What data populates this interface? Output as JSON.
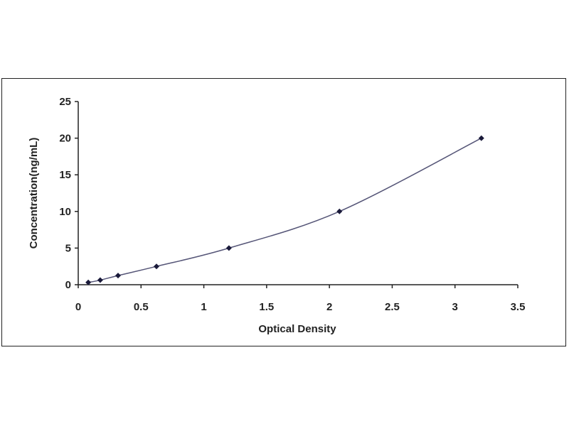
{
  "chart_data": {
    "type": "scatter",
    "title": "",
    "xlabel": "Optical Density",
    "ylabel": "Concentration(ng/mL)",
    "xlim": [
      0,
      3.5
    ],
    "ylim": [
      0,
      25
    ],
    "xticks": [
      "0",
      "0.5",
      "1",
      "1.5",
      "2",
      "2.5",
      "3",
      "3.5"
    ],
    "yticks": [
      "0",
      "5",
      "10",
      "15",
      "20",
      "25"
    ],
    "grid": false,
    "series": [
      {
        "x": [
          0.08,
          0.175,
          0.317,
          0.623,
          1.2,
          2.08,
          3.21
        ],
        "y": [
          0.313,
          0.625,
          1.25,
          2.5,
          5,
          10,
          20
        ],
        "fit_curve": true
      }
    ],
    "colors": {
      "curve": "#555577",
      "marker": "#1a1a3a",
      "axis": "#222222"
    }
  }
}
